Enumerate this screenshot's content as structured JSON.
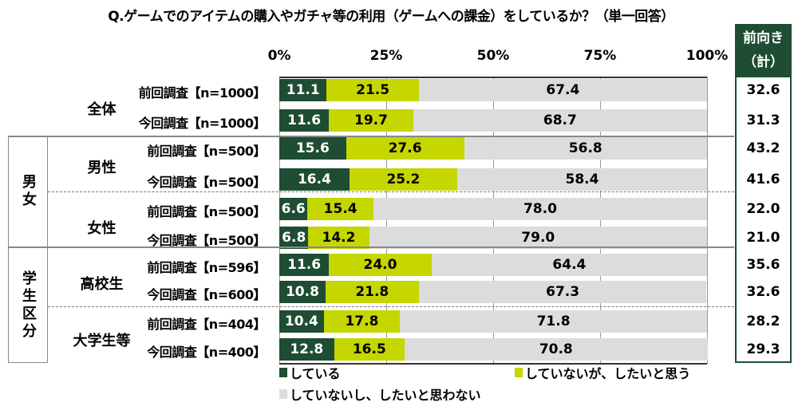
{
  "chart_data": {
    "type": "bar",
    "orientation": "horizontal-stacked-100",
    "title": "Q.ゲームでのアイテムの購入やガチャ等の利用（ゲームへの課金）をしているか？（単一回答）",
    "xlim": [
      0,
      100
    ],
    "ticks": [
      "0%",
      "25%",
      "50%",
      "75%",
      "100%"
    ],
    "side_header": [
      "前向き",
      "（計）"
    ],
    "colors": [
      "#1e4d33",
      "#c5d600",
      "#dcdcdc"
    ],
    "legend": [
      "している",
      "していないが、したいと思う",
      "していないし、したいと思わない"
    ],
    "groups": [
      {
        "label": "",
        "rows": [
          {
            "cat": "全体",
            "label": "前回調査【n=1000】",
            "values": [
              11.1,
              21.5,
              67.4
            ],
            "total": "32.6"
          },
          {
            "cat": "",
            "label": "今回調査【n=1000】",
            "values": [
              11.6,
              19.7,
              68.7
            ],
            "total": "31.3"
          }
        ]
      },
      {
        "label": "男女",
        "rows": [
          {
            "cat": "男性",
            "label": "前回調査【n=500】",
            "values": [
              15.6,
              27.6,
              56.8
            ],
            "total": "43.2"
          },
          {
            "cat": "",
            "label": "今回調査【n=500】",
            "values": [
              16.4,
              25.2,
              58.4
            ],
            "total": "41.6"
          },
          {
            "cat": "女性",
            "label": "前回調査【n=500】",
            "values": [
              6.6,
              15.4,
              78.0
            ],
            "total": "22.0"
          },
          {
            "cat": "",
            "label": "今回調査【n=500】",
            "values": [
              6.8,
              14.2,
              79.0
            ],
            "total": "21.0"
          }
        ]
      },
      {
        "label": "学生区分",
        "rows": [
          {
            "cat": "高校生",
            "label": "前回調査【n=596】",
            "values": [
              11.6,
              24.0,
              64.4
            ],
            "total": "35.6"
          },
          {
            "cat": "",
            "label": "今回調査【n=600】",
            "values": [
              10.8,
              21.8,
              67.3
            ],
            "total": "32.6"
          },
          {
            "cat": "大学生等",
            "label": "前回調査【n=404】",
            "values": [
              10.4,
              17.8,
              71.8
            ],
            "total": "28.2"
          },
          {
            "cat": "",
            "label": "今回調査【n=400】",
            "values": [
              12.8,
              16.5,
              70.8
            ],
            "total": "29.3"
          }
        ]
      }
    ]
  }
}
